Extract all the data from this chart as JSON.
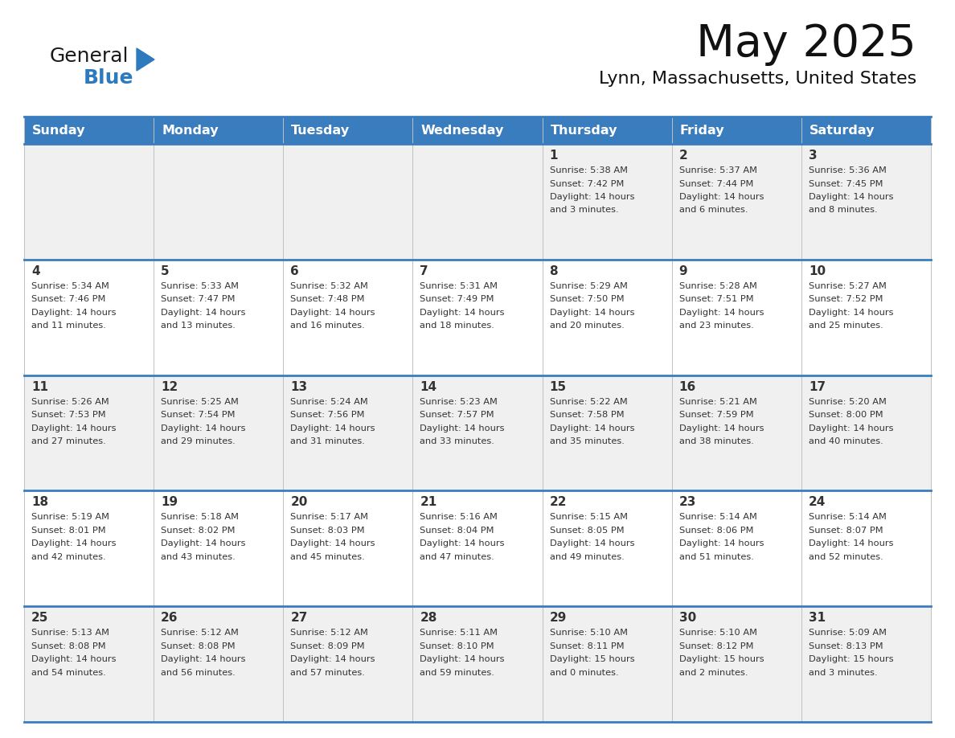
{
  "title": "May 2025",
  "subtitle": "Lynn, Massachusetts, United States",
  "header_color": "#3a7dbf",
  "header_text_color": "#ffffff",
  "cell_bg_even": "#f0f0f0",
  "cell_bg_odd": "#ffffff",
  "text_color": "#333333",
  "line_color": "#3a7dbf",
  "logo_general_color": "#1a1a1a",
  "logo_blue_color": "#2e7abf",
  "logo_triangle_color": "#2e7abf",
  "day_names": [
    "Sunday",
    "Monday",
    "Tuesday",
    "Wednesday",
    "Thursday",
    "Friday",
    "Saturday"
  ],
  "days": [
    {
      "day": 1,
      "col": 4,
      "row": 0,
      "sunrise": "5:38 AM",
      "sunset": "7:42 PM",
      "daylight": "14 hours and 3 minutes."
    },
    {
      "day": 2,
      "col": 5,
      "row": 0,
      "sunrise": "5:37 AM",
      "sunset": "7:44 PM",
      "daylight": "14 hours and 6 minutes."
    },
    {
      "day": 3,
      "col": 6,
      "row": 0,
      "sunrise": "5:36 AM",
      "sunset": "7:45 PM",
      "daylight": "14 hours and 8 minutes."
    },
    {
      "day": 4,
      "col": 0,
      "row": 1,
      "sunrise": "5:34 AM",
      "sunset": "7:46 PM",
      "daylight": "14 hours and 11 minutes."
    },
    {
      "day": 5,
      "col": 1,
      "row": 1,
      "sunrise": "5:33 AM",
      "sunset": "7:47 PM",
      "daylight": "14 hours and 13 minutes."
    },
    {
      "day": 6,
      "col": 2,
      "row": 1,
      "sunrise": "5:32 AM",
      "sunset": "7:48 PM",
      "daylight": "14 hours and 16 minutes."
    },
    {
      "day": 7,
      "col": 3,
      "row": 1,
      "sunrise": "5:31 AM",
      "sunset": "7:49 PM",
      "daylight": "14 hours and 18 minutes."
    },
    {
      "day": 8,
      "col": 4,
      "row": 1,
      "sunrise": "5:29 AM",
      "sunset": "7:50 PM",
      "daylight": "14 hours and 20 minutes."
    },
    {
      "day": 9,
      "col": 5,
      "row": 1,
      "sunrise": "5:28 AM",
      "sunset": "7:51 PM",
      "daylight": "14 hours and 23 minutes."
    },
    {
      "day": 10,
      "col": 6,
      "row": 1,
      "sunrise": "5:27 AM",
      "sunset": "7:52 PM",
      "daylight": "14 hours and 25 minutes."
    },
    {
      "day": 11,
      "col": 0,
      "row": 2,
      "sunrise": "5:26 AM",
      "sunset": "7:53 PM",
      "daylight": "14 hours and 27 minutes."
    },
    {
      "day": 12,
      "col": 1,
      "row": 2,
      "sunrise": "5:25 AM",
      "sunset": "7:54 PM",
      "daylight": "14 hours and 29 minutes."
    },
    {
      "day": 13,
      "col": 2,
      "row": 2,
      "sunrise": "5:24 AM",
      "sunset": "7:56 PM",
      "daylight": "14 hours and 31 minutes."
    },
    {
      "day": 14,
      "col": 3,
      "row": 2,
      "sunrise": "5:23 AM",
      "sunset": "7:57 PM",
      "daylight": "14 hours and 33 minutes."
    },
    {
      "day": 15,
      "col": 4,
      "row": 2,
      "sunrise": "5:22 AM",
      "sunset": "7:58 PM",
      "daylight": "14 hours and 35 minutes."
    },
    {
      "day": 16,
      "col": 5,
      "row": 2,
      "sunrise": "5:21 AM",
      "sunset": "7:59 PM",
      "daylight": "14 hours and 38 minutes."
    },
    {
      "day": 17,
      "col": 6,
      "row": 2,
      "sunrise": "5:20 AM",
      "sunset": "8:00 PM",
      "daylight": "14 hours and 40 minutes."
    },
    {
      "day": 18,
      "col": 0,
      "row": 3,
      "sunrise": "5:19 AM",
      "sunset": "8:01 PM",
      "daylight": "14 hours and 42 minutes."
    },
    {
      "day": 19,
      "col": 1,
      "row": 3,
      "sunrise": "5:18 AM",
      "sunset": "8:02 PM",
      "daylight": "14 hours and 43 minutes."
    },
    {
      "day": 20,
      "col": 2,
      "row": 3,
      "sunrise": "5:17 AM",
      "sunset": "8:03 PM",
      "daylight": "14 hours and 45 minutes."
    },
    {
      "day": 21,
      "col": 3,
      "row": 3,
      "sunrise": "5:16 AM",
      "sunset": "8:04 PM",
      "daylight": "14 hours and 47 minutes."
    },
    {
      "day": 22,
      "col": 4,
      "row": 3,
      "sunrise": "5:15 AM",
      "sunset": "8:05 PM",
      "daylight": "14 hours and 49 minutes."
    },
    {
      "day": 23,
      "col": 5,
      "row": 3,
      "sunrise": "5:14 AM",
      "sunset": "8:06 PM",
      "daylight": "14 hours and 51 minutes."
    },
    {
      "day": 24,
      "col": 6,
      "row": 3,
      "sunrise": "5:14 AM",
      "sunset": "8:07 PM",
      "daylight": "14 hours and 52 minutes."
    },
    {
      "day": 25,
      "col": 0,
      "row": 4,
      "sunrise": "5:13 AM",
      "sunset": "8:08 PM",
      "daylight": "14 hours and 54 minutes."
    },
    {
      "day": 26,
      "col": 1,
      "row": 4,
      "sunrise": "5:12 AM",
      "sunset": "8:08 PM",
      "daylight": "14 hours and 56 minutes."
    },
    {
      "day": 27,
      "col": 2,
      "row": 4,
      "sunrise": "5:12 AM",
      "sunset": "8:09 PM",
      "daylight": "14 hours and 57 minutes."
    },
    {
      "day": 28,
      "col": 3,
      "row": 4,
      "sunrise": "5:11 AM",
      "sunset": "8:10 PM",
      "daylight": "14 hours and 59 minutes."
    },
    {
      "day": 29,
      "col": 4,
      "row": 4,
      "sunrise": "5:10 AM",
      "sunset": "8:11 PM",
      "daylight": "15 hours and 0 minutes."
    },
    {
      "day": 30,
      "col": 5,
      "row": 4,
      "sunrise": "5:10 AM",
      "sunset": "8:12 PM",
      "daylight": "15 hours and 2 minutes."
    },
    {
      "day": 31,
      "col": 6,
      "row": 4,
      "sunrise": "5:09 AM",
      "sunset": "8:13 PM",
      "daylight": "15 hours and 3 minutes."
    }
  ]
}
